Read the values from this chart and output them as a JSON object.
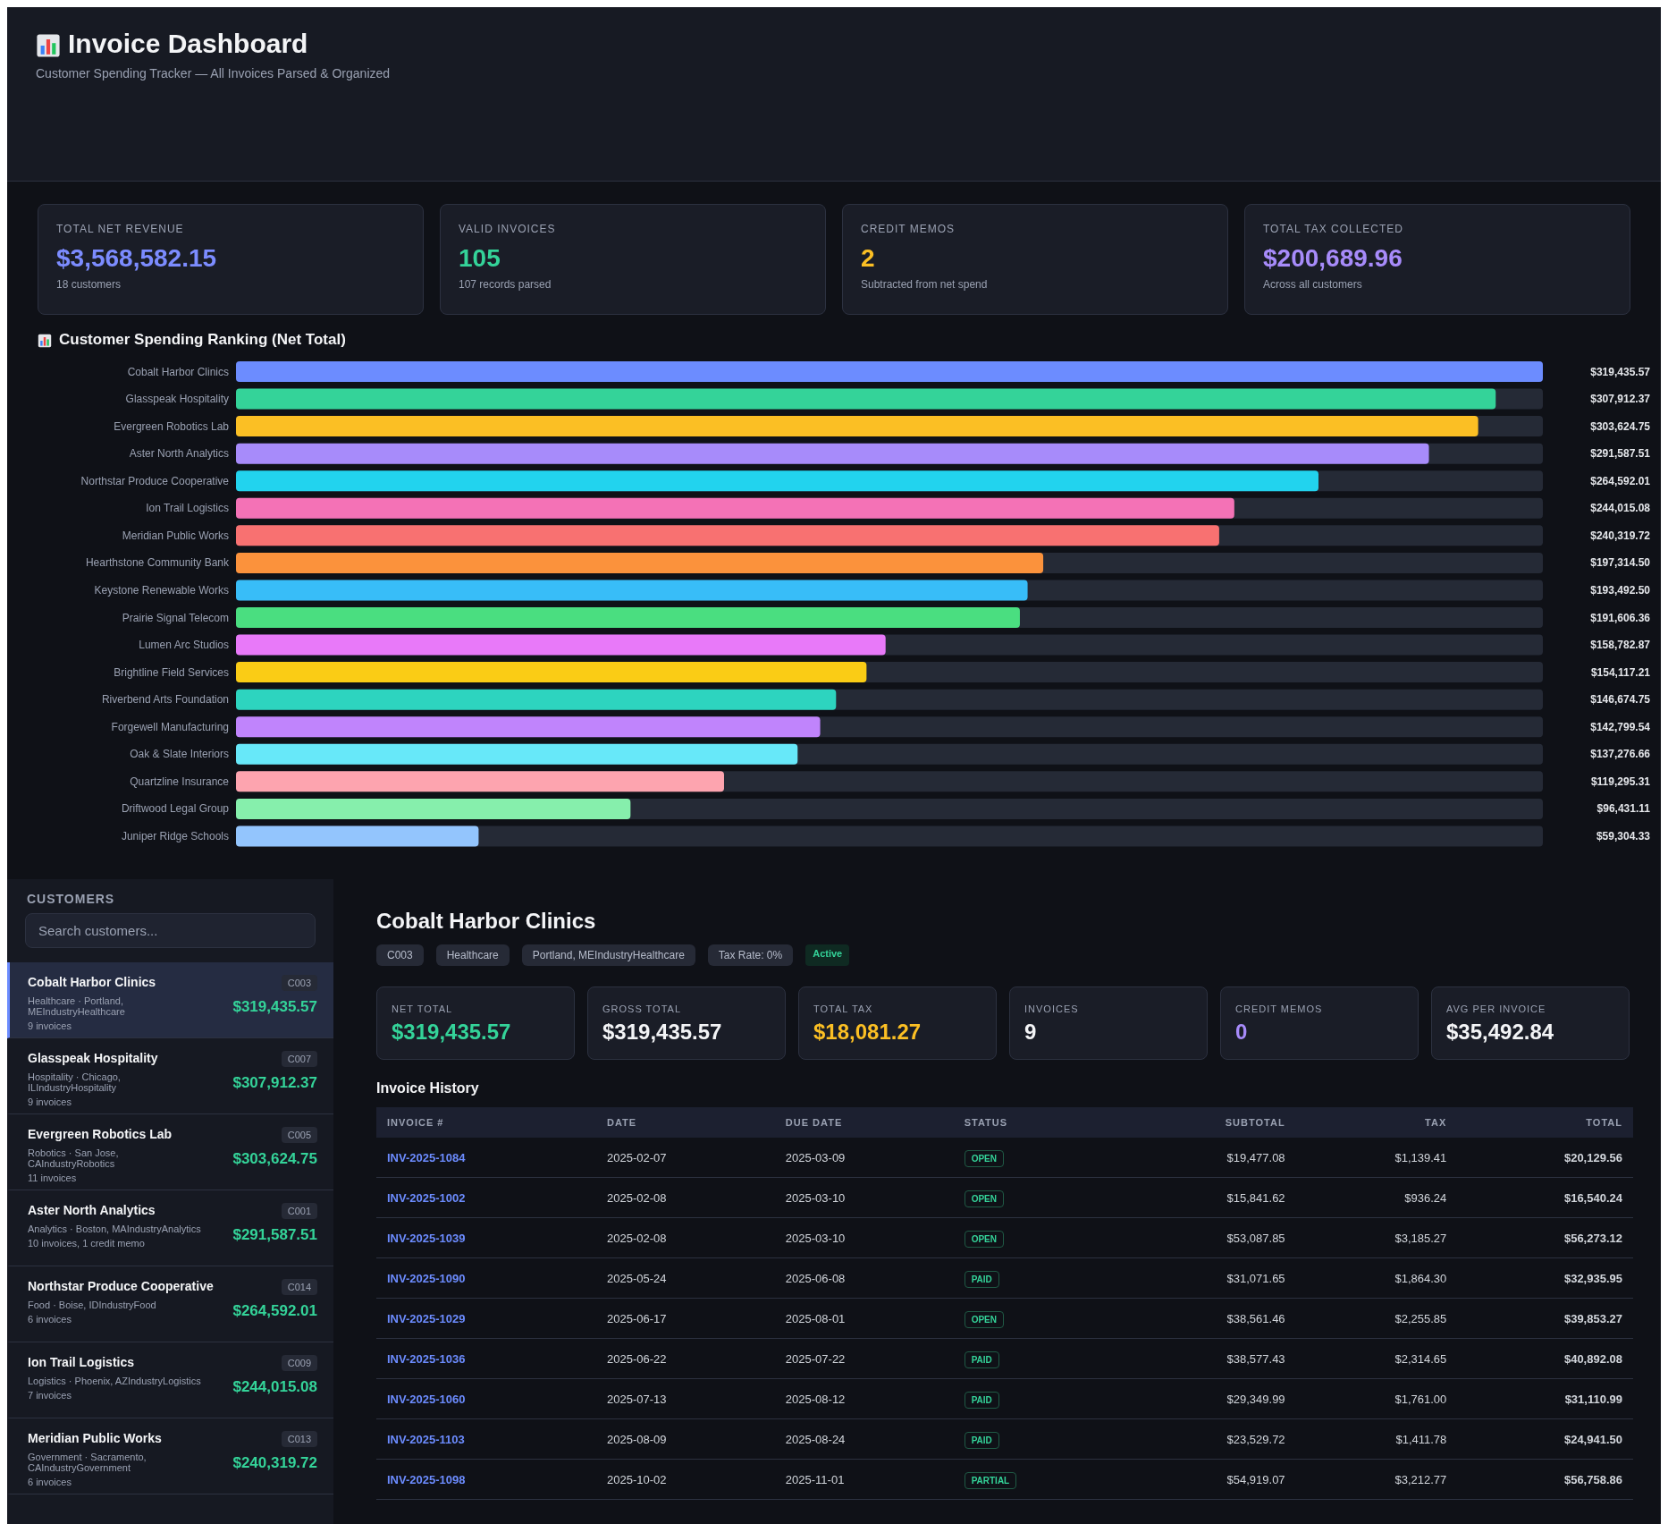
{
  "chart_data": [
    {
      "type": "other",
      "title": "Invoice Dashboard",
      "subtitle": "Customer Spending Tracker — All Invoices Parsed & Organized"
    },
    {
      "type": "other",
      "title": "TOTAL NET REVENUE",
      "annotations": [
        "$3,568,582.15",
        "18 customers"
      ]
    },
    {
      "type": "other",
      "title": "VALID INVOICES",
      "annotations": [
        "105",
        "107 records parsed"
      ]
    },
    {
      "type": "other",
      "title": "CREDIT MEMOS",
      "annotations": [
        "2",
        "Subtracted from net spend"
      ]
    },
    {
      "type": "other",
      "title": "TOTAL TAX COLLECTED",
      "annotations": [
        "$200,689.96",
        "Across all customers"
      ]
    },
    {
      "type": "bar",
      "orientation": "horizontal",
      "title": "Customer Spending Ranking (Net Total)",
      "categories": [
        "Cobalt Harbor Clinics",
        "Glasspeak Hospitality",
        "Evergreen Robotics Lab",
        "Aster North Analytics",
        "Northstar Produce Cooperative",
        "Ion Trail Logistics",
        "Meridian Public Works",
        "Hearthstone Community Bank",
        "Keystone Renewable Works",
        "Prairie Signal Telecom",
        "Lumen Arc Studios",
        "Brightline Field Services",
        "Riverbend Arts Foundation",
        "Forgewell Manufacturing",
        "Oak & Slate Interiors",
        "Quartzline Insurance",
        "Driftwood Legal Group",
        "Juniper Ridge Schools"
      ],
      "values": [
        319435.57,
        307912.37,
        303624.75,
        291587.51,
        264592.01,
        244015.08,
        240319.72,
        197314.5,
        193492.5,
        191606.36,
        158782.87,
        154117.21,
        146674.75,
        142799.54,
        137276.66,
        119295.31,
        96431.11,
        59304.33
      ],
      "value_labels": [
        "$319,435.57",
        "$307,912.37",
        "$303,624.75",
        "$291,587.51",
        "$264,592.01",
        "$244,015.08",
        "$240,319.72",
        "$197,314.50",
        "$193,492.50",
        "$191,606.36",
        "$158,782.87",
        "$154,117.21",
        "$146,674.75",
        "$142,799.54",
        "$137,276.66",
        "$119,295.31",
        "$96,431.11",
        "$59,304.33"
      ],
      "colors": [
        "#6c8cff",
        "#34d399",
        "#fbbf24",
        "#a78bfa",
        "#22d3ee",
        "#f472b6",
        "#f87171",
        "#fb923c",
        "#38bdf8",
        "#4ade80",
        "#e879f9",
        "#facc15",
        "#2dd4bf",
        "#c084fc",
        "#67e8f9",
        "#fda4af",
        "#86efac",
        "#93c5fd"
      ]
    },
    {
      "type": "other",
      "title": "CUSTOMERS",
      "annotations": [
        "Search customers...",
        "Cobalt Harbor Clinics",
        "C003",
        "Healthcare · Portland, MEIndustryHealthcare",
        "$319,435.57",
        "9 invoices",
        "Glasspeak Hospitality",
        "C007",
        "Hospitality · Chicago, ILIndustryHospitality",
        "$307,912.37",
        "9 invoices",
        "Evergreen Robotics Lab",
        "C005",
        "Robotics · San Jose, CAIndustryRobotics",
        "$303,624.75",
        "11 invoices",
        "Aster North Analytics",
        "C001",
        "Analytics · Boston, MAIndustryAnalytics",
        "$291,587.51",
        "10 invoices, 1 credit memo",
        "Northstar Produce Cooperative",
        "C014",
        "Food · Boise, IDIndustryFood",
        "$264,592.01",
        "6 invoices",
        "Ion Trail Logistics",
        "C009",
        "Logistics · Phoenix, AZIndustryLogistics",
        "$244,015.08",
        "7 invoices",
        "Meridian Public Works",
        "C013",
        "Government · Sacramento, CAIndustryGovernment",
        "$240,319.72",
        "6 invoices"
      ]
    },
    {
      "type": "other",
      "title": "Cobalt Harbor Clinics",
      "annotations": [
        "C003",
        "Healthcare",
        "Portland, MEIndustryHealthcare",
        "Tax Rate: 0%",
        "Active"
      ]
    },
    {
      "type": "other",
      "title": "NET TOTAL",
      "annotations": [
        "$319,435.57"
      ]
    },
    {
      "type": "other",
      "title": "GROSS TOTAL",
      "annotations": [
        "$319,435.57"
      ]
    },
    {
      "type": "other",
      "title": "TOTAL TAX",
      "annotations": [
        "$18,081.27"
      ]
    },
    {
      "type": "other",
      "title": "INVOICES",
      "annotations": [
        "9"
      ]
    },
    {
      "type": "other",
      "title": "CREDIT MEMOS",
      "annotations": [
        "0"
      ]
    },
    {
      "type": "other",
      "title": "AVG PER INVOICE",
      "annotations": [
        "$35,492.84"
      ]
    },
    {
      "type": "other",
      "title": "Invoice History",
      "categories": [
        "INVOICE #",
        "DATE",
        "DUE DATE",
        "STATUS",
        "SUBTOTAL",
        "TAX",
        "TOTAL"
      ],
      "annotations": [
        "INV-2025-1084",
        "2025-02-07",
        "2025-03-09",
        "OPEN",
        "$19,477.08",
        "$1,139.41",
        "$20,129.56",
        "INV-2025-1002",
        "2025-02-08",
        "2025-03-10",
        "OPEN",
        "$15,841.62",
        "$936.24",
        "$16,540.24",
        "INV-2025-1039",
        "2025-02-08",
        "2025-03-10",
        "OPEN",
        "$53,087.85",
        "$3,185.27",
        "$56,273.12",
        "INV-2025-1090",
        "2025-05-24",
        "2025-06-08",
        "PAID",
        "$31,071.65",
        "$1,864.30",
        "$32,935.95",
        "INV-2025-1029",
        "2025-06-17",
        "2025-08-01",
        "OPEN",
        "$38,561.46",
        "$2,255.85",
        "$39,853.27",
        "INV-2025-1036",
        "2025-06-22",
        "2025-07-22",
        "PAID",
        "$38,577.43",
        "$2,314.65",
        "$40,892.08",
        "INV-2025-1060",
        "2025-07-13",
        "2025-08-12",
        "PAID",
        "$29,349.99",
        "$1,761.00",
        "$31,110.99",
        "INV-2025-1103",
        "2025-08-09",
        "2025-08-24",
        "PAID",
        "$23,529.72",
        "$1,411.78",
        "$24,941.50",
        "INV-2025-1098",
        "2025-10-02",
        "2025-11-01",
        "PARTIAL",
        "$54,919.07",
        "$3,212.77",
        "$56,758.86"
      ]
    }
  ]
}
